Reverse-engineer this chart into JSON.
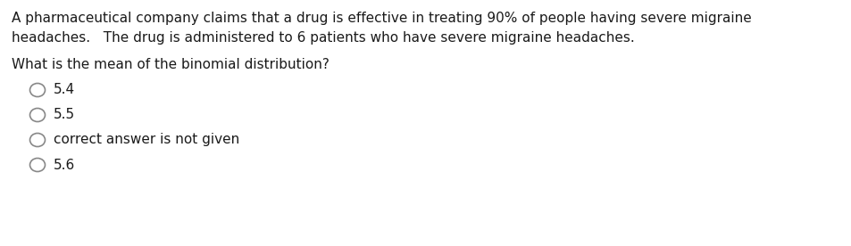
{
  "background_color": "#ffffff",
  "text_color": "#1a1a1a",
  "circle_color": "#888888",
  "para_line1": "A pharmaceutical company claims that a drug is effective in treating 90% of people having severe migraine",
  "para_line2": "headaches.   The drug is administered to 6 patients who have severe migraine headaches.",
  "question": "What is the mean of the binomial distribution?",
  "options": [
    "5.4",
    "5.5",
    "correct answer is not given",
    "5.6"
  ],
  "font_size_para": 11.0,
  "font_size_question": 11.0,
  "font_size_options": 11.0,
  "fig_width": 9.54,
  "fig_height": 2.76
}
